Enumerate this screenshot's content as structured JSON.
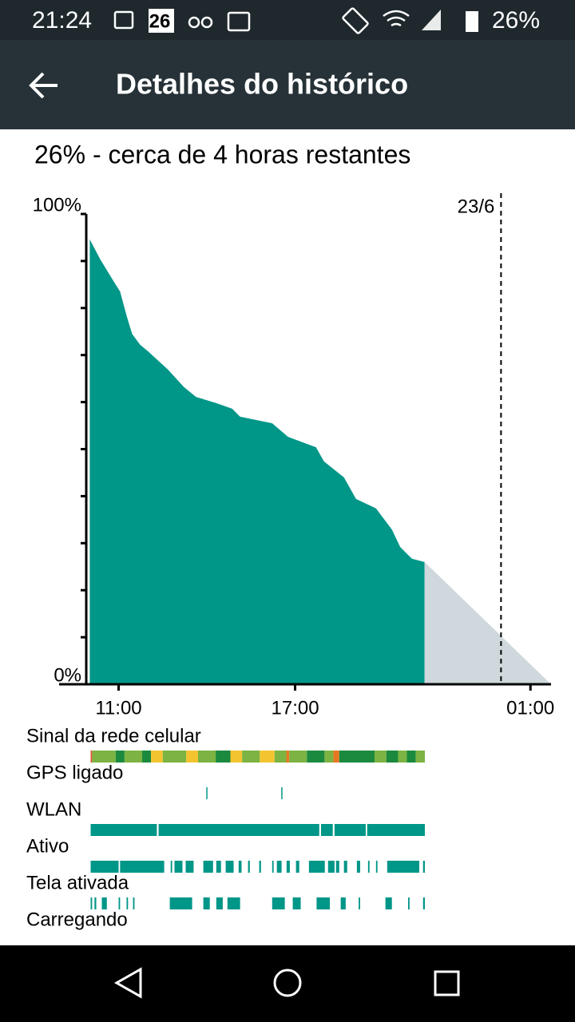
{
  "status_bar": {
    "time": "21:24",
    "calendar_day": "26",
    "battery": "26%"
  },
  "toolbar": {
    "title": "Detalhes do histórico"
  },
  "summary": "26% - cerca de  4 horas restantes",
  "chart_data": {
    "type": "area",
    "x": [
      10.02,
      10.38,
      10.79,
      11.05,
      11.27,
      11.46,
      11.73,
      12.0,
      12.68,
      13.22,
      13.63,
      14.31,
      14.86,
      15.13,
      16.22,
      16.76,
      17.71,
      17.98,
      18.66,
      19.07,
      19.75,
      20.29,
      20.57,
      20.97,
      21.4
    ],
    "values": [
      94.6,
      90.3,
      86.1,
      83.5,
      78.4,
      74.5,
      72.2,
      70.8,
      66.9,
      63.2,
      61.1,
      59.8,
      58.6,
      56.9,
      55.5,
      52.6,
      50.4,
      47.4,
      44.0,
      39.4,
      37.4,
      32.9,
      29.2,
      26.7,
      26
    ],
    "color": "#009688",
    "projection": {
      "x": [
        21.4,
        25.7
      ],
      "values": [
        26,
        0
      ],
      "color": "#cfd8dc"
    },
    "xlim": [
      9.9,
      25.7
    ],
    "ylim": [
      0,
      100
    ],
    "yticks": [
      {
        "value": 0,
        "label": "0%"
      },
      {
        "value": 100,
        "label": "100%"
      }
    ],
    "minor_yticks": [
      10,
      20,
      30,
      40,
      50,
      60,
      70,
      80,
      90
    ],
    "xticks": [
      {
        "value": 11,
        "label": "11:00"
      },
      {
        "value": 17,
        "label": "17:00"
      },
      {
        "value": 25,
        "label": "01:00"
      }
    ],
    "date_marker": {
      "value": 24,
      "label": "23/6"
    }
  },
  "rows": [
    {
      "label": "Sinal da rede celular",
      "spans": [
        [
          10.05,
          10.1
        ],
        [
          10.1,
          10.9
        ],
        [
          10.9,
          11.2
        ],
        [
          11.2,
          11.8
        ],
        [
          11.8,
          12.1
        ],
        [
          12.1,
          12.5
        ],
        [
          12.5,
          13.3
        ],
        [
          13.3,
          13.7
        ],
        [
          13.7,
          14.3
        ],
        [
          14.3,
          14.8
        ],
        [
          14.8,
          15.2
        ],
        [
          15.2,
          15.8
        ],
        [
          15.8,
          16.3
        ],
        [
          16.3,
          16.7
        ],
        [
          16.7,
          16.8
        ],
        [
          16.8,
          17.4
        ],
        [
          17.4,
          18.0
        ],
        [
          18.0,
          18.3
        ],
        [
          18.3,
          18.5
        ],
        [
          18.5,
          19.7
        ],
        [
          19.7,
          20.1
        ],
        [
          20.1,
          20.5
        ],
        [
          20.5,
          20.8
        ],
        [
          20.8,
          21.1
        ],
        [
          21.1,
          21.41
        ]
      ],
      "colors": [
        "#e0522a",
        "#7cb342",
        "#1b8a3e",
        "#7cb342",
        "#1b8a3e",
        "#f4c430",
        "#7cb342",
        "#f4c430",
        "#7cb342",
        "#1b8a3e",
        "#f4c430",
        "#7cb342",
        "#f4c430",
        "#7cb342",
        "#e87722",
        "#7cb342",
        "#1b8a3e",
        "#7cb342",
        "#e87722",
        "#1b8a3e",
        "#7cb342",
        "#1b8a3e",
        "#7cb342",
        "#1b8a3e",
        "#7cb342"
      ]
    },
    {
      "label": "GPS ligado",
      "spans": [
        [
          13.98,
          14.02
        ],
        [
          16.53,
          16.57
        ]
      ],
      "color": "#009688"
    },
    {
      "label": "WLAN",
      "spans": [
        [
          10.05,
          12.3
        ],
        [
          12.36,
          17.82
        ],
        [
          17.88,
          18.28
        ],
        [
          18.34,
          19.4
        ],
        [
          19.45,
          21.41
        ]
      ],
      "color": "#009688"
    },
    {
      "label": "Ativo",
      "spans": [
        [
          10.05,
          11.0
        ],
        [
          11.05,
          12.55
        ],
        [
          12.77,
          12.82
        ],
        [
          12.9,
          13.17
        ],
        [
          13.28,
          13.55
        ],
        [
          13.88,
          14.21
        ],
        [
          14.32,
          14.48
        ],
        [
          14.64,
          14.91
        ],
        [
          15.08,
          15.18
        ],
        [
          15.4,
          15.46
        ],
        [
          15.78,
          15.84
        ],
        [
          16.22,
          16.27
        ],
        [
          16.38,
          16.54
        ],
        [
          16.71,
          16.82
        ],
        [
          17.03,
          17.14
        ],
        [
          17.47,
          18.01
        ],
        [
          18.12,
          18.34
        ],
        [
          18.39,
          18.5
        ],
        [
          18.66,
          18.77
        ],
        [
          19.1,
          19.21
        ],
        [
          19.48,
          19.53
        ],
        [
          19.75,
          19.8
        ],
        [
          20.13,
          21.22
        ],
        [
          21.35,
          21.41
        ]
      ],
      "color": "#009688"
    },
    {
      "label": "Tela ativada",
      "spans": [
        [
          10.05,
          10.1
        ],
        [
          10.18,
          10.24
        ],
        [
          10.43,
          10.6
        ],
        [
          11.0,
          11.05
        ],
        [
          11.27,
          11.32
        ],
        [
          11.49,
          11.54
        ],
        [
          12.74,
          13.5
        ],
        [
          13.88,
          14.1
        ],
        [
          14.32,
          14.54
        ],
        [
          14.7,
          15.13
        ],
        [
          16.22,
          16.65
        ],
        [
          16.92,
          17.19
        ],
        [
          17.73,
          18.18
        ],
        [
          18.55,
          18.72
        ],
        [
          19.16,
          19.21
        ],
        [
          20.07,
          20.29
        ],
        [
          20.84,
          20.89
        ],
        [
          21.35,
          21.41
        ]
      ],
      "color": "#009688"
    },
    {
      "label": "Carregando",
      "spans": [],
      "color": "#009688"
    }
  ]
}
